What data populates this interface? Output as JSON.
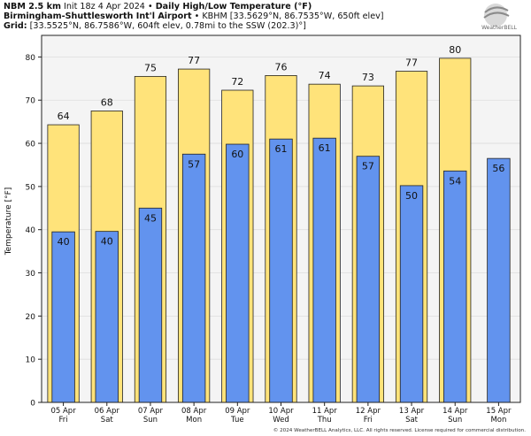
{
  "header": {
    "model": "NBM 2.5 km",
    "init": "Init 18z 4 Apr 2024",
    "bullet": "•",
    "title": "Daily High/Low Temperature (°F)",
    "station": "Birmingham-Shuttlesworth Int'l Airport",
    "station_info": "KBHM [33.5629°N, 86.7535°W, 650ft elev]",
    "grid_label": "Grid:",
    "grid_info": "[33.5525°N, 86.7586°W, 604ft elev, 0.78mi to the SSW (202.3)°]"
  },
  "logo": {
    "text": "WeatherBELL"
  },
  "copyright": "© 2024 WeatherBELL Analytics, LLC. All rights reserved. License required for commercial distribution.",
  "colors": {
    "high": "#FFE37A",
    "low": "#6293EE",
    "plot_bg": "#F4F4F4",
    "grid": "#DDDDDD",
    "edge": "#222222"
  },
  "chart_data": {
    "type": "bar",
    "title": "Daily High/Low Temperature (°F)",
    "ylabel": "Temperature [°F]",
    "ylim": [
      0,
      85
    ],
    "yticks": [
      0,
      10,
      20,
      30,
      40,
      50,
      60,
      70,
      80
    ],
    "grid": true,
    "categories": [
      {
        "date": "05 Apr",
        "day": "Fri"
      },
      {
        "date": "06 Apr",
        "day": "Sat"
      },
      {
        "date": "07 Apr",
        "day": "Sun"
      },
      {
        "date": "08 Apr",
        "day": "Mon"
      },
      {
        "date": "09 Apr",
        "day": "Tue"
      },
      {
        "date": "10 Apr",
        "day": "Wed"
      },
      {
        "date": "11 Apr",
        "day": "Thu"
      },
      {
        "date": "12 Apr",
        "day": "Fri"
      },
      {
        "date": "13 Apr",
        "day": "Sat"
      },
      {
        "date": "14 Apr",
        "day": "Sun"
      },
      {
        "date": "15 Apr",
        "day": "Mon"
      }
    ],
    "series": [
      {
        "key": "high",
        "values": [
          64.3,
          67.5,
          75.5,
          77.2,
          72.3,
          75.7,
          73.7,
          73.3,
          76.7,
          79.7,
          null
        ],
        "labels": [
          "64",
          "68",
          "75",
          "77",
          "72",
          "76",
          "74",
          "73",
          "77",
          "80",
          ""
        ]
      },
      {
        "key": "low",
        "values": [
          39.5,
          39.6,
          45.0,
          57.5,
          59.8,
          61.0,
          61.2,
          57.0,
          50.2,
          53.6,
          56.5
        ],
        "labels": [
          "40",
          "40",
          "45",
          "57",
          "60",
          "61",
          "61",
          "57",
          "50",
          "54",
          "56"
        ]
      }
    ]
  }
}
